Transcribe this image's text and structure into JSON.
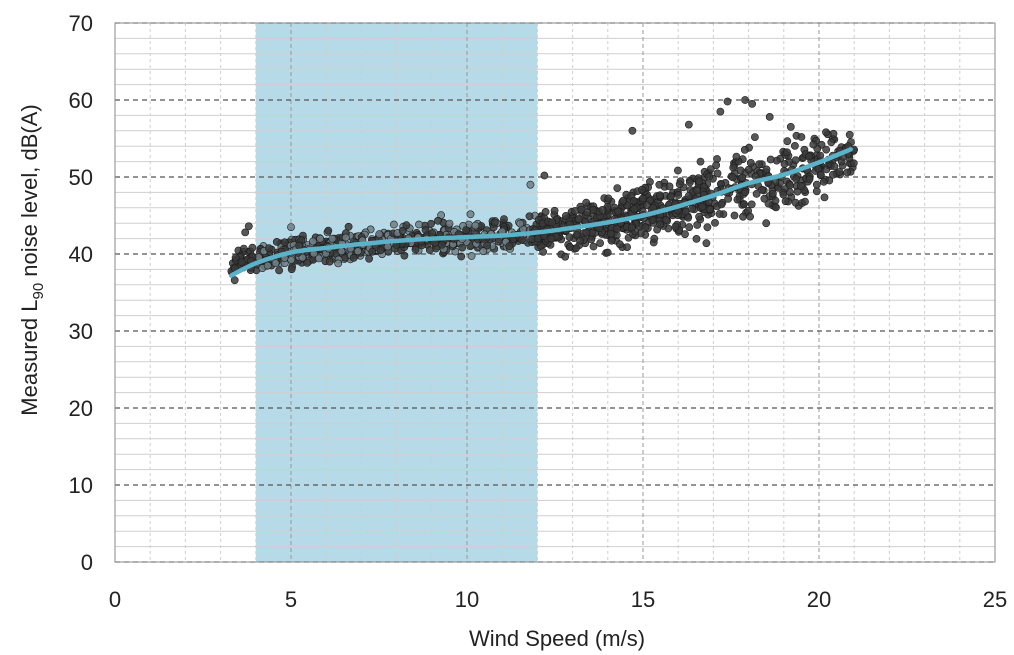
{
  "chart_data": {
    "type": "scatter",
    "title": "",
    "xlabel": "Wind Speed (m/s)",
    "ylabel": {
      "prefix": "Measured L",
      "subscript": "90",
      "suffix": " noise level, dB(A)"
    },
    "xlim": [
      0,
      25
    ],
    "ylim": [
      0,
      70
    ],
    "x_ticks": [
      0,
      5,
      10,
      15,
      20,
      25
    ],
    "y_ticks": [
      0,
      10,
      20,
      30,
      40,
      50,
      60,
      70
    ],
    "x_minor_step": 1,
    "y_minor_step": 2,
    "grid": true,
    "colors": {
      "points": "#3a3a3a",
      "points_light": "#6e7f86",
      "trend": "#5ab3c9",
      "highlight": "#a9d4e3",
      "grid_major": "#555555",
      "grid_minor": "#cfcfcf"
    },
    "highlight_band": {
      "x": [
        4,
        12
      ]
    },
    "trend_line": {
      "name": "",
      "x": [
        3.3,
        4,
        5,
        6,
        7,
        8,
        9,
        10,
        11,
        12,
        13,
        14,
        15,
        16,
        17,
        18,
        19,
        20,
        20.9
      ],
      "y": [
        37.2,
        38.8,
        40.2,
        40.8,
        41.3,
        41.7,
        42.0,
        42.2,
        42.4,
        42.8,
        43.4,
        44.1,
        45.0,
        46.2,
        47.6,
        49.2,
        50.3,
        51.9,
        53.6
      ]
    },
    "scatter_envelope": {
      "x": [
        3.3,
        4,
        5,
        6,
        7,
        8,
        9,
        10,
        11,
        12,
        13,
        14,
        15,
        16,
        17,
        18,
        19,
        20,
        21
      ],
      "mean": [
        38.5,
        39.5,
        40.2,
        40.8,
        41.3,
        41.7,
        42.0,
        42.2,
        42.4,
        42.8,
        43.4,
        44.1,
        45.0,
        46.2,
        47.6,
        49.2,
        50.3,
        51.9,
        53.0
      ],
      "spread": [
        1.2,
        1.5,
        1.6,
        1.7,
        1.8,
        1.8,
        1.8,
        1.9,
        2.0,
        2.2,
        2.4,
        2.7,
        3.0,
        3.4,
        3.8,
        4.2,
        4.0,
        3.5,
        2.2
      ]
    },
    "scatter_points": [
      {
        "x": 3.7,
        "y": 42.8
      },
      {
        "x": 3.8,
        "y": 43.6
      },
      {
        "x": 3.4,
        "y": 36.6
      },
      {
        "x": 5.0,
        "y": 43.5
      },
      {
        "x": 14.7,
        "y": 56.0
      },
      {
        "x": 16.3,
        "y": 56.8
      },
      {
        "x": 17.2,
        "y": 58.5
      },
      {
        "x": 17.4,
        "y": 59.8
      },
      {
        "x": 17.9,
        "y": 60.0
      },
      {
        "x": 18.1,
        "y": 59.5
      },
      {
        "x": 18.6,
        "y": 57.8
      },
      {
        "x": 19.2,
        "y": 56.5
      },
      {
        "x": 19.5,
        "y": 55.2
      },
      {
        "x": 20.2,
        "y": 55.8
      },
      {
        "x": 20.6,
        "y": 53.4
      },
      {
        "x": 20.8,
        "y": 50.6
      },
      {
        "x": 18.5,
        "y": 44.0
      },
      {
        "x": 17.6,
        "y": 45.0
      },
      {
        "x": 16.8,
        "y": 41.4
      },
      {
        "x": 12.2,
        "y": 50.2
      },
      {
        "x": 11.8,
        "y": 49.0
      }
    ]
  }
}
